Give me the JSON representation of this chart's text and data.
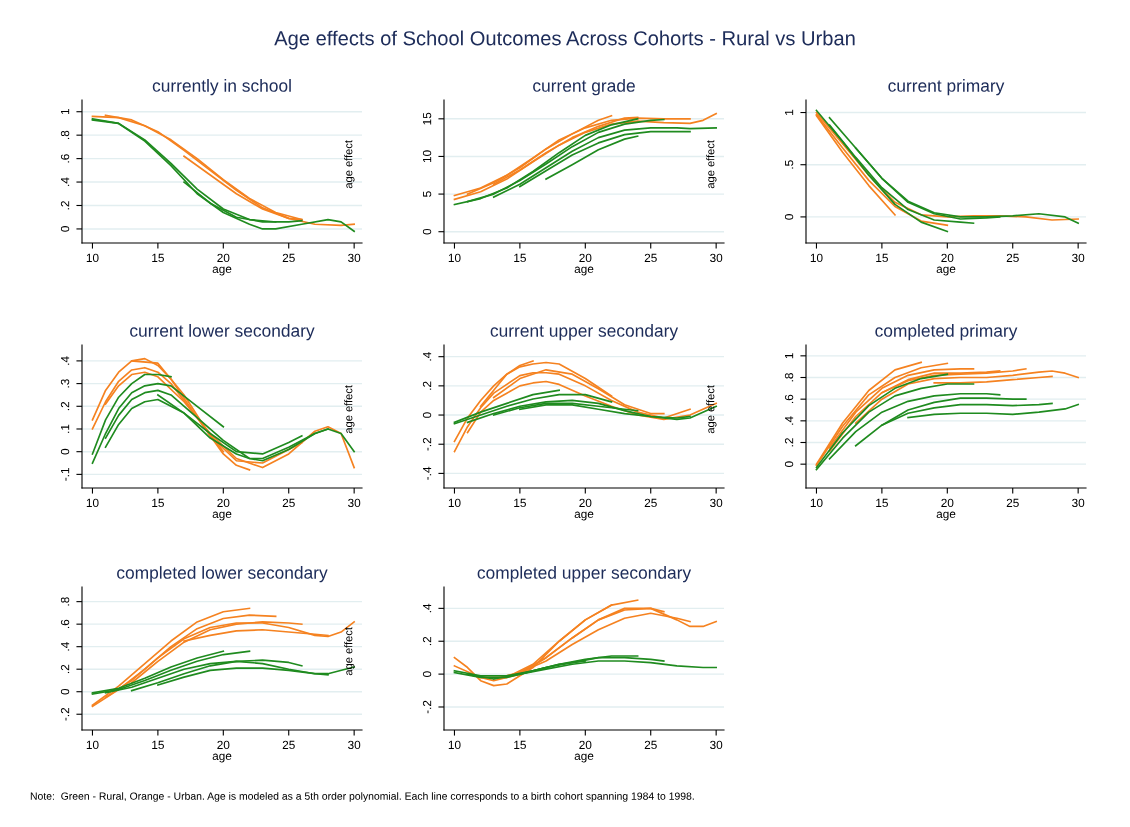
{
  "chart_data": [
    {
      "type": "line",
      "title": "currently in school",
      "xlabel": "age",
      "annotations": [
        "age effect"
      ],
      "grid": "y",
      "legend": false,
      "xlim": [
        9.2,
        30.6
      ],
      "xticks": [
        10,
        15,
        20,
        25,
        30
      ],
      "ylim": [
        -0.12,
        1.1
      ],
      "yticks": [
        0,
        {
          "value": 0.2,
          "label": ".2"
        },
        {
          "value": 0.4,
          "label": ".4"
        },
        {
          "value": 0.6,
          "label": ".6"
        },
        {
          "value": 0.8,
          "label": ".8"
        },
        1
      ],
      "series": [
        {
          "color": "#f58220",
          "x": [
            10,
            12,
            14,
            16,
            18,
            20,
            22,
            24,
            26
          ],
          "values": [
            0.96,
            0.95,
            0.88,
            0.76,
            0.6,
            0.42,
            0.26,
            0.14,
            0.08
          ]
        },
        {
          "color": "#f58220",
          "x": [
            11,
            13,
            15,
            17,
            19,
            21,
            23,
            25,
            27,
            29,
            30
          ],
          "values": [
            0.97,
            0.93,
            0.83,
            0.67,
            0.5,
            0.33,
            0.18,
            0.09,
            0.04,
            0.03,
            0.04
          ]
        },
        {
          "color": "#f58220",
          "x": [
            17,
            19,
            21,
            23,
            25,
            26
          ],
          "values": [
            0.62,
            0.46,
            0.3,
            0.17,
            0.09,
            0.08
          ]
        },
        {
          "color": "#1f8b1f",
          "x": [
            10,
            12,
            14,
            16,
            18,
            20,
            22,
            24
          ],
          "values": [
            0.93,
            0.9,
            0.76,
            0.56,
            0.34,
            0.17,
            0.08,
            0.06
          ]
        },
        {
          "color": "#1f8b1f",
          "x": [
            10,
            12,
            14,
            16,
            18,
            20,
            22,
            23,
            24,
            26,
            28,
            29,
            30
          ],
          "values": [
            0.94,
            0.9,
            0.75,
            0.54,
            0.3,
            0.14,
            0.04,
            0.0,
            0.0,
            0.04,
            0.08,
            0.06,
            -0.02
          ]
        },
        {
          "color": "#1f8b1f",
          "x": [
            17,
            19,
            21,
            23,
            25,
            26
          ],
          "values": [
            0.4,
            0.22,
            0.1,
            0.06,
            0.06,
            0.07
          ]
        }
      ]
    },
    {
      "type": "line",
      "title": "current grade",
      "xlabel": "age",
      "annotations": [
        "age effect"
      ],
      "grid": "y",
      "legend": false,
      "xlim": [
        9.2,
        30.6
      ],
      "xticks": [
        10,
        15,
        20,
        25,
        30
      ],
      "ylim": [
        -1.5,
        17.5
      ],
      "yticks": [
        0,
        5,
        10,
        15
      ],
      "series": [
        {
          "color": "#f58220",
          "x": [
            10,
            12,
            14,
            16,
            18,
            20,
            22,
            24,
            26,
            28
          ],
          "values": [
            4.8,
            5.8,
            7.5,
            9.8,
            12.2,
            13.8,
            14.8,
            15.1,
            15,
            15
          ]
        },
        {
          "color": "#f58220",
          "x": [
            11,
            13,
            15,
            17,
            19,
            21,
            22
          ],
          "values": [
            5,
            6.5,
            8.5,
            11,
            13,
            14.8,
            15.4
          ]
        },
        {
          "color": "#f58220",
          "x": [
            10,
            12,
            14,
            16,
            18,
            20,
            22,
            24,
            26,
            28,
            29,
            30
          ],
          "values": [
            4.3,
            5.3,
            7,
            9.3,
            11.5,
            13.2,
            14.3,
            14.7,
            14.5,
            14.4,
            14.8,
            15.7
          ]
        },
        {
          "color": "#f58220",
          "x": [
            13,
            15,
            17,
            19,
            21,
            23,
            24
          ],
          "values": [
            6.3,
            8.2,
            10.5,
            12.5,
            14,
            15.1,
            15.2
          ]
        },
        {
          "color": "#1f8b1f",
          "x": [
            10,
            12,
            14,
            16,
            18,
            20,
            22,
            24
          ],
          "values": [
            3.6,
            4.4,
            5.8,
            8,
            10.5,
            12.8,
            14.2,
            15
          ]
        },
        {
          "color": "#1f8b1f",
          "x": [
            11,
            13,
            15,
            17,
            19,
            21,
            23,
            25,
            26
          ],
          "values": [
            4,
            5,
            6.8,
            9,
            11.3,
            13.2,
            14.3,
            14.8,
            14.9
          ]
        },
        {
          "color": "#1f8b1f",
          "x": [
            13,
            15,
            17,
            19,
            21,
            23,
            25,
            27,
            28,
            30
          ],
          "values": [
            4.6,
            6.3,
            8.5,
            10.7,
            12.5,
            13.5,
            13.8,
            13.8,
            13.7,
            13.8
          ]
        },
        {
          "color": "#1f8b1f",
          "x": [
            15,
            17,
            19,
            21,
            23,
            25,
            28
          ],
          "values": [
            6,
            8.1,
            10.2,
            11.8,
            12.9,
            13.3,
            13.3
          ]
        },
        {
          "color": "#1f8b1f",
          "x": [
            17,
            19,
            21,
            23,
            24
          ],
          "values": [
            7,
            8.9,
            10.9,
            12.3,
            12.7
          ]
        }
      ]
    },
    {
      "type": "line",
      "title": "current primary",
      "xlabel": "age",
      "grid": "y",
      "legend": false,
      "xlim": [
        9.2,
        30.6
      ],
      "xticks": [
        10,
        15,
        20,
        25,
        30
      ],
      "ylim": [
        -0.25,
        1.12
      ],
      "yticks": [
        0,
        {
          "value": 0.5,
          "label": ".5"
        },
        1
      ],
      "series": [
        {
          "color": "#f58220",
          "x": [
            10,
            12,
            14,
            16
          ],
          "values": [
            0.97,
            0.62,
            0.3,
            0.02
          ]
        },
        {
          "color": "#f58220",
          "x": [
            10,
            12,
            14,
            16,
            18,
            20
          ],
          "values": [
            0.98,
            0.66,
            0.35,
            0.1,
            -0.04,
            -0.08
          ]
        },
        {
          "color": "#f58220",
          "x": [
            10,
            12,
            14,
            16,
            18,
            20,
            22,
            24,
            26,
            28,
            30
          ],
          "values": [
            1,
            0.7,
            0.4,
            0.14,
            0.02,
            0,
            0.01,
            0.01,
            0,
            -0.03,
            -0.02
          ]
        },
        {
          "color": "#1f8b1f",
          "x": [
            10,
            12,
            14,
            16,
            18,
            20
          ],
          "values": [
            1.02,
            0.72,
            0.4,
            0.12,
            -0.05,
            -0.14
          ]
        },
        {
          "color": "#1f8b1f",
          "x": [
            11,
            13,
            15,
            17,
            19,
            21,
            22
          ],
          "values": [
            0.88,
            0.57,
            0.28,
            0.07,
            -0.03,
            -0.05,
            -0.06
          ]
        },
        {
          "color": "#1f8b1f",
          "x": [
            11,
            13,
            15,
            17,
            19,
            21,
            23,
            25,
            27,
            29,
            30
          ],
          "values": [
            0.95,
            0.66,
            0.37,
            0.15,
            0.04,
            0,
            0,
            0.01,
            0.03,
            0,
            -0.06
          ]
        },
        {
          "color": "#1f8b1f",
          "x": [
            13,
            15,
            17,
            19,
            21,
            23,
            24
          ],
          "values": [
            0.66,
            0.37,
            0.14,
            0.03,
            -0.02,
            -0.01,
            0
          ]
        }
      ]
    },
    {
      "type": "line",
      "title": "current lower secondary",
      "xlabel": "age",
      "annotations": [
        "age effect"
      ],
      "grid": "y",
      "legend": false,
      "xlim": [
        9.2,
        30.6
      ],
      "xticks": [
        10,
        15,
        20,
        25,
        30
      ],
      "ylim": [
        -0.16,
        0.47
      ],
      "yticks": [
        {
          "value": -0.1,
          "label": "-.1"
        },
        0,
        {
          "value": 0.1,
          "label": ".1"
        },
        {
          "value": 0.2,
          "label": ".2"
        },
        {
          "value": 0.3,
          "label": ".3"
        },
        {
          "value": 0.4,
          "label": ".4"
        }
      ],
      "series": [
        {
          "color": "#f58220",
          "x": [
            10,
            11,
            12,
            13,
            14,
            15,
            16,
            18,
            20,
            21,
            22
          ],
          "values": [
            0.14,
            0.27,
            0.35,
            0.4,
            0.41,
            0.38,
            0.32,
            0.15,
            -0.01,
            -0.06,
            -0.08
          ]
        },
        {
          "color": "#f58220",
          "x": [
            10,
            11,
            12,
            13,
            14,
            15,
            16,
            18,
            20
          ],
          "values": [
            0.1,
            0.22,
            0.31,
            0.36,
            0.37,
            0.35,
            0.3,
            0.15,
            0.0
          ]
        },
        {
          "color": "#f58220",
          "x": [
            11,
            12,
            13,
            14,
            15,
            17,
            19,
            21,
            23,
            25,
            27,
            28,
            29,
            30
          ],
          "values": [
            0.21,
            0.29,
            0.34,
            0.35,
            0.33,
            0.22,
            0.08,
            -0.03,
            -0.07,
            -0.01,
            0.09,
            0.11,
            0.08,
            -0.07
          ]
        },
        {
          "color": "#f58220",
          "x": [
            13,
            15,
            17,
            19,
            21,
            23,
            25,
            26
          ],
          "values": [
            0.4,
            0.39,
            0.25,
            0.07,
            -0.04,
            -0.05,
            0.01,
            0.04
          ]
        },
        {
          "color": "#1f8b1f",
          "x": [
            10,
            11,
            12,
            13,
            14,
            15,
            16
          ],
          "values": [
            -0.01,
            0.14,
            0.24,
            0.3,
            0.34,
            0.34,
            0.33
          ]
        },
        {
          "color": "#1f8b1f",
          "x": [
            10,
            11,
            12,
            13,
            14,
            15,
            16,
            18,
            20
          ],
          "values": [
            -0.05,
            0.08,
            0.19,
            0.26,
            0.29,
            0.3,
            0.29,
            0.2,
            0.11
          ]
        },
        {
          "color": "#1f8b1f",
          "x": [
            11,
            12,
            13,
            14,
            15,
            16,
            18,
            20,
            22,
            23,
            25,
            27,
            28,
            29,
            30
          ],
          "values": [
            0.06,
            0.16,
            0.23,
            0.26,
            0.27,
            0.25,
            0.15,
            0.05,
            -0.03,
            -0.04,
            0.01,
            0.08,
            0.1,
            0.08,
            0.0
          ]
        },
        {
          "color": "#1f8b1f",
          "x": [
            11,
            12,
            13,
            14,
            15,
            17,
            19,
            21,
            23,
            25,
            26
          ],
          "values": [
            0.02,
            0.12,
            0.19,
            0.22,
            0.23,
            0.17,
            0.08,
            0.0,
            -0.01,
            0.04,
            0.07
          ]
        },
        {
          "color": "#1f8b1f",
          "x": [
            15,
            17,
            19,
            21,
            22,
            23,
            25,
            27,
            28
          ],
          "values": [
            0.25,
            0.17,
            0.06,
            -0.01,
            -0.03,
            -0.03,
            0.02,
            0.08,
            0.1
          ]
        }
      ]
    },
    {
      "type": "line",
      "title": "current upper secondary",
      "xlabel": "age",
      "annotations": [
        "age effect"
      ],
      "grid": "y",
      "legend": false,
      "xlim": [
        9.2,
        30.6
      ],
      "xticks": [
        10,
        15,
        20,
        25,
        30
      ],
      "ylim": [
        -0.5,
        0.48
      ],
      "yticks": [
        {
          "value": -0.4,
          "label": "-.4"
        },
        {
          "value": -0.2,
          "label": "-.2"
        },
        0,
        {
          "value": 0.2,
          "label": ".2"
        },
        {
          "value": 0.4,
          "label": ".4"
        }
      ],
      "series": [
        {
          "color": "#f58220",
          "x": [
            10,
            11,
            12,
            13,
            14,
            15,
            16,
            17,
            18,
            20,
            22
          ],
          "values": [
            -0.18,
            -0.02,
            0.1,
            0.2,
            0.28,
            0.33,
            0.35,
            0.36,
            0.35,
            0.25,
            0.13
          ]
        },
        {
          "color": "#f58220",
          "x": [
            10,
            11,
            12,
            13,
            14,
            15,
            16,
            17,
            18,
            20,
            22,
            24,
            26,
            28
          ],
          "values": [
            -0.25,
            -0.08,
            0.05,
            0.15,
            0.21,
            0.27,
            0.29,
            0.29,
            0.28,
            0.2,
            0.1,
            0.02,
            -0.02,
            0.04
          ]
        },
        {
          "color": "#f58220",
          "x": [
            11,
            12,
            13,
            14,
            15,
            16,
            17,
            18,
            20,
            22,
            24,
            26,
            28,
            30
          ],
          "values": [
            -0.12,
            0.02,
            0.1,
            0.15,
            0.2,
            0.22,
            0.23,
            0.21,
            0.13,
            0.06,
            0.0,
            -0.03,
            0.0,
            0.08
          ]
        },
        {
          "color": "#f58220",
          "x": [
            12,
            13,
            14,
            15,
            16
          ],
          "values": [
            0.06,
            0.17,
            0.28,
            0.34,
            0.37
          ]
        },
        {
          "color": "#f58220",
          "x": [
            13,
            15,
            17,
            19,
            21,
            23,
            25,
            26
          ],
          "values": [
            0.12,
            0.25,
            0.31,
            0.28,
            0.18,
            0.07,
            0.01,
            0.01
          ]
        },
        {
          "color": "#1f8b1f",
          "x": [
            10,
            12,
            14,
            16,
            18
          ],
          "values": [
            -0.05,
            0.02,
            0.08,
            0.14,
            0.17
          ]
        },
        {
          "color": "#1f8b1f",
          "x": [
            10,
            12,
            14,
            16,
            18,
            20,
            22
          ],
          "values": [
            -0.06,
            0.0,
            0.06,
            0.11,
            0.14,
            0.14,
            0.09
          ]
        },
        {
          "color": "#1f8b1f",
          "x": [
            11,
            13,
            15,
            17,
            19,
            21,
            23,
            25,
            27,
            28,
            30
          ],
          "values": [
            -0.05,
            0.01,
            0.06,
            0.09,
            0.1,
            0.08,
            0.03,
            -0.01,
            -0.03,
            -0.02,
            0.06
          ]
        },
        {
          "color": "#1f8b1f",
          "x": [
            13,
            15,
            17,
            19,
            21,
            23,
            24
          ],
          "values": [
            0.0,
            0.05,
            0.08,
            0.08,
            0.06,
            0.04,
            0.03
          ]
        },
        {
          "color": "#1f8b1f",
          "x": [
            15,
            17,
            19,
            21,
            23,
            25,
            27,
            28
          ],
          "values": [
            0.04,
            0.07,
            0.07,
            0.04,
            0.01,
            -0.01,
            -0.02,
            -0.01
          ]
        }
      ]
    },
    {
      "type": "line",
      "title": "completed primary",
      "xlabel": "age",
      "grid": "y",
      "legend": false,
      "xlim": [
        9.2,
        30.6
      ],
      "xticks": [
        10,
        15,
        20,
        25,
        30
      ],
      "ylim": [
        -0.22,
        1.1
      ],
      "yticks": [
        0,
        {
          "value": 0.2,
          "label": ".2"
        },
        {
          "value": 0.4,
          "label": ".4"
        },
        {
          "value": 0.6,
          "label": ".6"
        },
        {
          "value": 0.8,
          "label": ".8"
        },
        1
      ],
      "series": [
        {
          "color": "#f58220",
          "x": [
            10,
            12,
            14,
            16,
            18
          ],
          "values": [
            0.0,
            0.38,
            0.68,
            0.87,
            0.94
          ]
        },
        {
          "color": "#f58220",
          "x": [
            10,
            12,
            14,
            16,
            18,
            20
          ],
          "values": [
            -0.01,
            0.35,
            0.64,
            0.8,
            0.89,
            0.93
          ]
        },
        {
          "color": "#f58220",
          "x": [
            11,
            13,
            15,
            17,
            19,
            21,
            22
          ],
          "values": [
            0.15,
            0.48,
            0.7,
            0.82,
            0.87,
            0.88,
            0.88
          ]
        },
        {
          "color": "#f58220",
          "x": [
            11,
            13,
            15,
            17,
            19,
            21,
            23,
            24
          ],
          "values": [
            0.12,
            0.44,
            0.66,
            0.78,
            0.84,
            0.84,
            0.85,
            0.86
          ]
        },
        {
          "color": "#f58220",
          "x": [
            13,
            15,
            17,
            19,
            21,
            23,
            25,
            27,
            28,
            29,
            30
          ],
          "values": [
            0.38,
            0.6,
            0.74,
            0.79,
            0.8,
            0.8,
            0.82,
            0.85,
            0.86,
            0.84,
            0.8
          ]
        },
        {
          "color": "#f58220",
          "x": [
            15,
            17,
            19,
            21,
            23,
            25,
            26
          ],
          "values": [
            0.66,
            0.77,
            0.82,
            0.83,
            0.84,
            0.86,
            0.88
          ]
        },
        {
          "color": "#f58220",
          "x": [
            19,
            21,
            23,
            25,
            27,
            28
          ],
          "values": [
            0.75,
            0.75,
            0.76,
            0.78,
            0.8,
            0.81
          ]
        },
        {
          "color": "#1f8b1f",
          "x": [
            10,
            12,
            14,
            16,
            18,
            20
          ],
          "values": [
            -0.03,
            0.29,
            0.54,
            0.7,
            0.79,
            0.83
          ]
        },
        {
          "color": "#1f8b1f",
          "x": [
            10,
            12,
            14,
            16,
            18,
            20,
            22
          ],
          "values": [
            -0.05,
            0.24,
            0.48,
            0.63,
            0.7,
            0.74,
            0.74
          ]
        },
        {
          "color": "#1f8b1f",
          "x": [
            11,
            13,
            15,
            17,
            19,
            21,
            23,
            24
          ],
          "values": [
            0.05,
            0.3,
            0.48,
            0.58,
            0.63,
            0.65,
            0.65,
            0.64
          ]
        },
        {
          "color": "#1f8b1f",
          "x": [
            13,
            15,
            17,
            19,
            21,
            23,
            25,
            26
          ],
          "values": [
            0.17,
            0.36,
            0.5,
            0.57,
            0.61,
            0.61,
            0.6,
            0.6
          ]
        },
        {
          "color": "#1f8b1f",
          "x": [
            15,
            17,
            19,
            21,
            23,
            25,
            27,
            28
          ],
          "values": [
            0.36,
            0.47,
            0.52,
            0.55,
            0.55,
            0.54,
            0.55,
            0.56
          ]
        },
        {
          "color": "#1f8b1f",
          "x": [
            17,
            19,
            21,
            23,
            25,
            27,
            29,
            30
          ],
          "values": [
            0.43,
            0.46,
            0.47,
            0.47,
            0.46,
            0.48,
            0.51,
            0.55
          ]
        }
      ]
    },
    {
      "type": "line",
      "title": "completed lower secondary",
      "xlabel": "age",
      "annotations": [
        "age effect"
      ],
      "grid": "y",
      "legend": false,
      "xlim": [
        9.2,
        30.6
      ],
      "xticks": [
        10,
        15,
        20,
        25,
        30
      ],
      "ylim": [
        -0.34,
        0.93
      ],
      "yticks": [
        {
          "value": -0.2,
          "label": "-.2"
        },
        0,
        {
          "value": 0.2,
          "label": ".2"
        },
        {
          "value": 0.4,
          "label": ".4"
        },
        {
          "value": 0.6,
          "label": ".6"
        },
        {
          "value": 0.8,
          "label": ".8"
        }
      ],
      "series": [
        {
          "color": "#f58220",
          "x": [
            10,
            12,
            14,
            16,
            18,
            20,
            22
          ],
          "values": [
            -0.12,
            0.05,
            0.25,
            0.45,
            0.62,
            0.71,
            0.74
          ]
        },
        {
          "color": "#f58220",
          "x": [
            10,
            12,
            14,
            16,
            18,
            20,
            22,
            24
          ],
          "values": [
            -0.13,
            0.02,
            0.2,
            0.4,
            0.56,
            0.65,
            0.68,
            0.67
          ]
        },
        {
          "color": "#f58220",
          "x": [
            11,
            13,
            15,
            17,
            19,
            21,
            23,
            25,
            27,
            28,
            29,
            30
          ],
          "values": [
            -0.05,
            0.1,
            0.3,
            0.47,
            0.57,
            0.61,
            0.61,
            0.57,
            0.5,
            0.49,
            0.53,
            0.62
          ]
        },
        {
          "color": "#f58220",
          "x": [
            13,
            15,
            17,
            19,
            21,
            23,
            25,
            26
          ],
          "values": [
            0.08,
            0.27,
            0.44,
            0.55,
            0.6,
            0.62,
            0.61,
            0.6
          ]
        },
        {
          "color": "#f58220",
          "x": [
            17,
            19,
            21,
            23,
            25,
            27,
            28
          ],
          "values": [
            0.45,
            0.5,
            0.54,
            0.55,
            0.53,
            0.51,
            0.5
          ]
        },
        {
          "color": "#1f8b1f",
          "x": [
            10,
            12,
            14,
            16,
            18,
            20
          ],
          "values": [
            -0.01,
            0.03,
            0.12,
            0.22,
            0.3,
            0.36
          ]
        },
        {
          "color": "#1f8b1f",
          "x": [
            10,
            12,
            14,
            16,
            18,
            20,
            22
          ],
          "values": [
            -0.02,
            0.02,
            0.1,
            0.19,
            0.27,
            0.33,
            0.36
          ]
        },
        {
          "color": "#1f8b1f",
          "x": [
            11,
            13,
            15,
            17,
            19,
            21,
            23,
            25,
            27,
            28,
            30
          ],
          "values": [
            -0.01,
            0.04,
            0.12,
            0.2,
            0.25,
            0.27,
            0.25,
            0.2,
            0.16,
            0.16,
            0.22
          ]
        },
        {
          "color": "#1f8b1f",
          "x": [
            13,
            15,
            17,
            19,
            21,
            23,
            25,
            26
          ],
          "values": [
            0.01,
            0.08,
            0.16,
            0.23,
            0.27,
            0.28,
            0.26,
            0.23
          ]
        },
        {
          "color": "#1f8b1f",
          "x": [
            15,
            17,
            19,
            21,
            23,
            25,
            27,
            28
          ],
          "values": [
            0.06,
            0.13,
            0.19,
            0.21,
            0.21,
            0.19,
            0.16,
            0.15
          ]
        }
      ]
    },
    {
      "type": "line",
      "title": "completed upper secondary",
      "xlabel": "age",
      "grid": "y",
      "legend": false,
      "xlim": [
        9.2,
        30.6
      ],
      "xticks": [
        10,
        15,
        20,
        25,
        30
      ],
      "ylim": [
        -0.34,
        0.53
      ],
      "yticks": [
        {
          "value": -0.2,
          "label": "-.2"
        },
        0,
        {
          "value": 0.2,
          "label": ".2"
        },
        {
          "value": 0.4,
          "label": ".4"
        }
      ],
      "series": [
        {
          "color": "#f58220",
          "x": [
            10,
            11,
            12,
            13,
            14,
            16,
            18,
            20,
            22
          ],
          "values": [
            0.1,
            0.04,
            -0.04,
            -0.07,
            -0.06,
            0.04,
            0.2,
            0.33,
            0.42
          ]
        },
        {
          "color": "#f58220",
          "x": [
            10,
            12,
            14,
            16,
            18,
            20,
            22,
            24
          ],
          "values": [
            0.05,
            -0.02,
            -0.02,
            0.06,
            0.2,
            0.33,
            0.42,
            0.45
          ]
        },
        {
          "color": "#f58220",
          "x": [
            11,
            13,
            15,
            17,
            19,
            21,
            23,
            25,
            27,
            28,
            29,
            30
          ],
          "values": [
            0.0,
            -0.04,
            0.0,
            0.1,
            0.22,
            0.33,
            0.4,
            0.4,
            0.33,
            0.29,
            0.29,
            0.32
          ]
        },
        {
          "color": "#f58220",
          "x": [
            13,
            15,
            17,
            19,
            21,
            23,
            25,
            26
          ],
          "values": [
            -0.03,
            0.01,
            0.1,
            0.22,
            0.33,
            0.39,
            0.4,
            0.38
          ]
        },
        {
          "color": "#f58220",
          "x": [
            15,
            17,
            19,
            21,
            23,
            25,
            27,
            28
          ],
          "values": [
            0.01,
            0.08,
            0.18,
            0.27,
            0.34,
            0.37,
            0.34,
            0.32
          ]
        },
        {
          "color": "#1f8b1f",
          "x": [
            10,
            12,
            14,
            16,
            18,
            20
          ],
          "values": [
            0.02,
            -0.01,
            -0.01,
            0.02,
            0.06,
            0.08
          ]
        },
        {
          "color": "#1f8b1f",
          "x": [
            10,
            12,
            14,
            16,
            18,
            20,
            22,
            24
          ],
          "values": [
            0.01,
            -0.02,
            -0.02,
            0.02,
            0.06,
            0.09,
            0.11,
            0.11
          ]
        },
        {
          "color": "#1f8b1f",
          "x": [
            11,
            13,
            15,
            17,
            19,
            21,
            23,
            25,
            27,
            29,
            30
          ],
          "values": [
            0.0,
            -0.03,
            0.0,
            0.03,
            0.06,
            0.08,
            0.08,
            0.07,
            0.05,
            0.04,
            0.04
          ]
        },
        {
          "color": "#1f8b1f",
          "x": [
            15,
            17,
            19,
            21,
            23,
            25,
            26
          ],
          "values": [
            0.0,
            0.04,
            0.07,
            0.1,
            0.1,
            0.09,
            0.08
          ]
        }
      ]
    },
    {
      "type": "other",
      "title": "Age effects of School Outcomes Across Cohorts - Rural vs Urban",
      "annotations": [
        "Note:  Green - Rural, Orange - Urban. Age is modeled as a 5th order polynomial. Each line corresponds to a birth cohort spanning 1984 to 1998."
      ]
    }
  ]
}
